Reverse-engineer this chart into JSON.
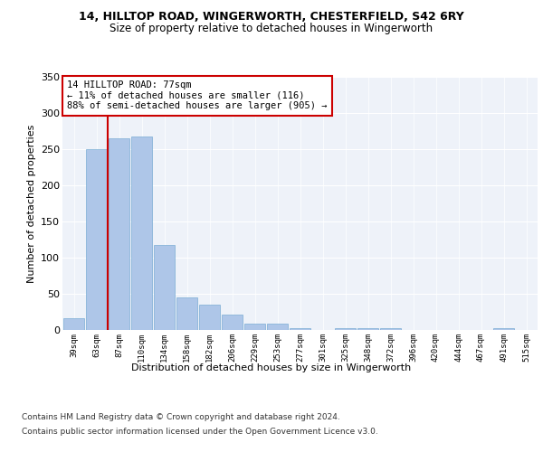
{
  "title1": "14, HILLTOP ROAD, WINGERWORTH, CHESTERFIELD, S42 6RY",
  "title2": "Size of property relative to detached houses in Wingerworth",
  "xlabel": "Distribution of detached houses by size in Wingerworth",
  "ylabel": "Number of detached properties",
  "categories": [
    "39sqm",
    "63sqm",
    "87sqm",
    "110sqm",
    "134sqm",
    "158sqm",
    "182sqm",
    "206sqm",
    "229sqm",
    "253sqm",
    "277sqm",
    "301sqm",
    "325sqm",
    "348sqm",
    "372sqm",
    "396sqm",
    "420sqm",
    "444sqm",
    "467sqm",
    "491sqm",
    "515sqm"
  ],
  "values": [
    16,
    250,
    265,
    268,
    117,
    45,
    35,
    21,
    9,
    9,
    3,
    0,
    3,
    3,
    3,
    0,
    0,
    0,
    0,
    3,
    0
  ],
  "bar_color": "#aec6e8",
  "bar_edge_color": "#7aadd4",
  "vline_x": 1.5,
  "vline_color": "#cc0000",
  "annotation_text": "14 HILLTOP ROAD: 77sqm\n← 11% of detached houses are smaller (116)\n88% of semi-detached houses are larger (905) →",
  "annotation_box_color": "#ffffff",
  "annotation_box_edge": "#cc0000",
  "ylim": [
    0,
    350
  ],
  "yticks": [
    0,
    50,
    100,
    150,
    200,
    250,
    300,
    350
  ],
  "bg_color": "#eef2f9",
  "footer1": "Contains HM Land Registry data © Crown copyright and database right 2024.",
  "footer2": "Contains public sector information licensed under the Open Government Licence v3.0."
}
